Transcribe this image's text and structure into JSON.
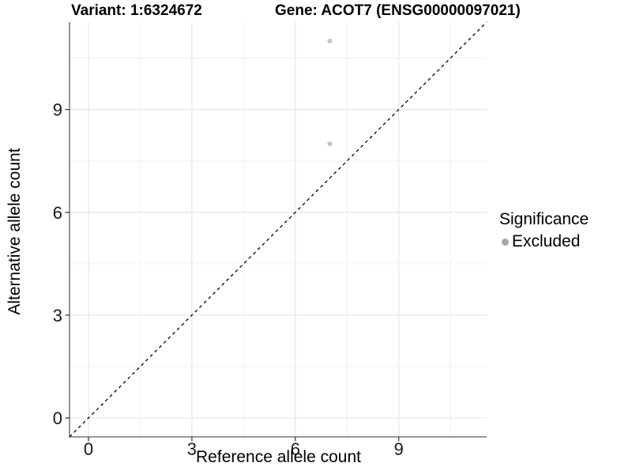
{
  "chart_data": {
    "type": "scatter",
    "titles": {
      "left": "Variant: 1:6324672",
      "right": "Gene: ACOT7 (ENSG00000097021)"
    },
    "xlabel": "Reference allele count",
    "ylabel": "Alternative allele count",
    "xlim": [
      -0.55,
      11.55
    ],
    "ylim": [
      -0.55,
      11.55
    ],
    "x_breaks": [
      0,
      3,
      6,
      9
    ],
    "y_breaks": [
      0,
      3,
      6,
      9
    ],
    "x_minor_breaks": [
      1.5,
      4.5,
      7.5,
      10.5
    ],
    "y_minor_breaks": [
      1.5,
      4.5,
      7.5,
      10.5
    ],
    "grid": "major+minor",
    "reference_line": {
      "slope": 1,
      "intercept": 0,
      "style": "dashed"
    },
    "series": [
      {
        "name": "Excluded",
        "points": [
          {
            "x": 7,
            "y": 11
          },
          {
            "x": 7,
            "y": 8
          }
        ]
      }
    ],
    "legend": {
      "title": "Significance",
      "position": "right",
      "entries": [
        {
          "label": "Excluded"
        }
      ]
    }
  },
  "colors": {
    "background": "#ffffff",
    "axis_line": "#5a5a5a",
    "tick_mark": "#2b2b2b",
    "tick_label": "#1a1a1a",
    "grid_major": "#e3e3e3",
    "grid_minor": "#efefef",
    "point": "#c4c4c4",
    "legend_key": "#a6a6a6",
    "dashed_line": "#000000"
  }
}
